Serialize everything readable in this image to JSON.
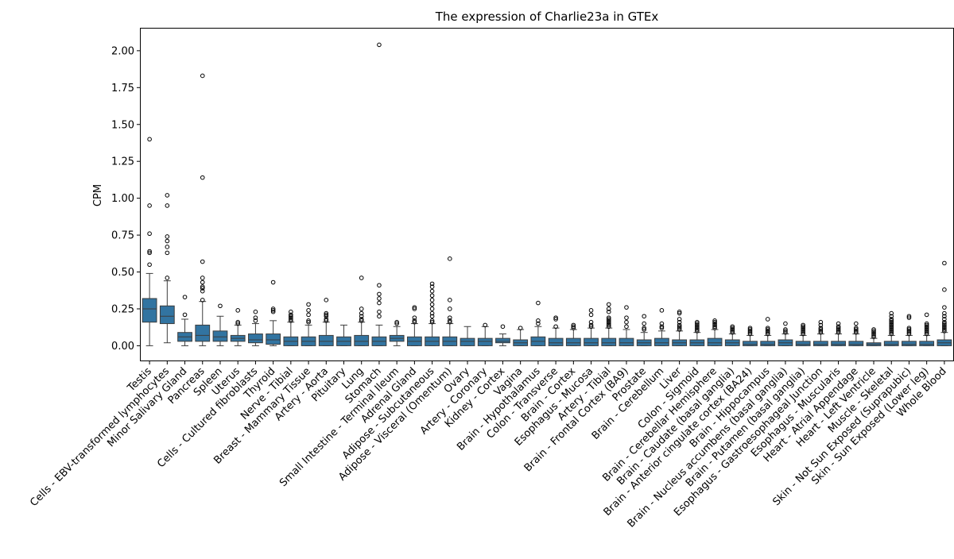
{
  "chart_data": {
    "type": "box",
    "title": "The expression of Charlie23a in GTEx",
    "xlabel": "",
    "ylabel": "CPM",
    "ylim": [
      -0.1,
      2.15
    ],
    "yticks": [
      0.0,
      0.25,
      0.5,
      0.75,
      1.0,
      1.25,
      1.5,
      1.75,
      2.0
    ],
    "ytick_labels": [
      "0.00",
      "0.25",
      "0.50",
      "0.75",
      "1.00",
      "1.25",
      "1.50",
      "1.75",
      "2.00"
    ],
    "grid": false,
    "legend": "none",
    "box_color": "#3274a1",
    "edge_color": "#3d3d3d",
    "categories": [
      "Testis",
      "Cells - EBV-transformed lymphocytes",
      "Minor Salivary Gland",
      "Pancreas",
      "Spleen",
      "Uterus",
      "Cells - Cultured fibroblasts",
      "Thyroid",
      "Nerve - Tibial",
      "Breast - Mammary Tissue",
      "Artery - Aorta",
      "Pituitary",
      "Lung",
      "Stomach",
      "Small Intestine - Terminal Ileum",
      "Adrenal Gland",
      "Adipose - Subcutaneous",
      "Adipose - Visceral (Omentum)",
      "Ovary",
      "Artery - Coronary",
      "Kidney - Cortex",
      "Vagina",
      "Brain - Hypothalamus",
      "Colon - Transverse",
      "Brain - Cortex",
      "Esophagus - Mucosa",
      "Artery - Tibial",
      "Brain - Frontal Cortex (BA9)",
      "Prostate",
      "Brain - Cerebellum",
      "Liver",
      "Colon - Sigmoid",
      "Brain - Cerebellar Hemisphere",
      "Brain - Caudate (basal ganglia)",
      "Brain - Anterior cingulate cortex (BA24)",
      "Brain - Hippocampus",
      "Brain - Nucleus accumbens (basal ganglia)",
      "Brain - Putamen (basal ganglia)",
      "Esophagus - Gastroesophageal Junction",
      "Esophagus - Muscularis",
      "Heart - Atrial Appendage",
      "Heart - Left Ventricle",
      "Muscle - Skeletal",
      "Skin - Not Sun Exposed (Suprapubic)",
      "Skin - Sun Exposed (Lower leg)",
      "Whole Blood"
    ],
    "boxes": [
      {
        "q1": 0.16,
        "median": 0.25,
        "q3": 0.32,
        "whisker_low": 0.0,
        "whisker_high": 0.49,
        "outliers": [
          0.55,
          0.63,
          0.64,
          0.76,
          0.95,
          1.4
        ]
      },
      {
        "q1": 0.15,
        "median": 0.2,
        "q3": 0.27,
        "whisker_low": 0.02,
        "whisker_high": 0.44,
        "outliers": [
          0.46,
          0.63,
          0.67,
          0.71,
          0.74,
          0.95,
          1.02
        ]
      },
      {
        "q1": 0.03,
        "median": 0.06,
        "q3": 0.09,
        "whisker_low": 0.0,
        "whisker_high": 0.18,
        "outliers": [
          0.21,
          0.33
        ]
      },
      {
        "q1": 0.03,
        "median": 0.07,
        "q3": 0.14,
        "whisker_low": 0.0,
        "whisker_high": 0.3,
        "outliers": [
          0.31,
          0.37,
          0.39,
          0.4,
          0.43,
          0.46,
          0.57,
          1.14,
          1.83
        ]
      },
      {
        "q1": 0.03,
        "median": 0.06,
        "q3": 0.1,
        "whisker_low": 0.0,
        "whisker_high": 0.2,
        "outliers": [
          0.27
        ]
      },
      {
        "q1": 0.03,
        "median": 0.05,
        "q3": 0.07,
        "whisker_low": 0.0,
        "whisker_high": 0.14,
        "outliers": [
          0.15,
          0.16,
          0.24
        ]
      },
      {
        "q1": 0.02,
        "median": 0.04,
        "q3": 0.08,
        "whisker_low": 0.0,
        "whisker_high": 0.15,
        "outliers": [
          0.17,
          0.19,
          0.23
        ]
      },
      {
        "q1": 0.01,
        "median": 0.04,
        "q3": 0.08,
        "whisker_low": 0.0,
        "whisker_high": 0.17,
        "outliers": [
          0.23,
          0.24,
          0.25,
          0.43
        ]
      },
      {
        "q1": 0.0,
        "median": 0.03,
        "q3": 0.06,
        "whisker_low": 0.0,
        "whisker_high": 0.16,
        "outliers": [
          0.17,
          0.18,
          0.19,
          0.2,
          0.21,
          0.23
        ]
      },
      {
        "q1": 0.0,
        "median": 0.03,
        "q3": 0.06,
        "whisker_low": 0.0,
        "whisker_high": 0.14,
        "outliers": [
          0.16,
          0.17,
          0.21,
          0.24,
          0.28
        ]
      },
      {
        "q1": 0.0,
        "median": 0.03,
        "q3": 0.07,
        "whisker_low": 0.0,
        "whisker_high": 0.16,
        "outliers": [
          0.17,
          0.18,
          0.2,
          0.21,
          0.22,
          0.31
        ]
      },
      {
        "q1": 0.0,
        "median": 0.03,
        "q3": 0.06,
        "whisker_low": 0.0,
        "whisker_high": 0.14,
        "outliers": []
      },
      {
        "q1": 0.0,
        "median": 0.03,
        "q3": 0.07,
        "whisker_low": 0.0,
        "whisker_high": 0.16,
        "outliers": [
          0.17,
          0.18,
          0.2,
          0.22,
          0.25,
          0.46
        ]
      },
      {
        "q1": 0.0,
        "median": 0.03,
        "q3": 0.06,
        "whisker_low": 0.0,
        "whisker_high": 0.14,
        "outliers": [
          0.2,
          0.23,
          0.29,
          0.32,
          0.35,
          0.41,
          2.04
        ]
      },
      {
        "q1": 0.03,
        "median": 0.05,
        "q3": 0.07,
        "whisker_low": 0.0,
        "whisker_high": 0.13,
        "outliers": [
          0.15,
          0.16
        ]
      },
      {
        "q1": 0.0,
        "median": 0.03,
        "q3": 0.06,
        "whisker_low": 0.0,
        "whisker_high": 0.15,
        "outliers": [
          0.16,
          0.17,
          0.19,
          0.25,
          0.26
        ]
      },
      {
        "q1": 0.0,
        "median": 0.03,
        "q3": 0.06,
        "whisker_low": 0.0,
        "whisker_high": 0.15,
        "outliers": [
          0.16,
          0.17,
          0.2,
          0.22,
          0.25,
          0.28,
          0.31,
          0.34,
          0.37,
          0.4,
          0.42
        ]
      },
      {
        "q1": 0.0,
        "median": 0.03,
        "q3": 0.06,
        "whisker_low": 0.0,
        "whisker_high": 0.15,
        "outliers": [
          0.16,
          0.17,
          0.19,
          0.25,
          0.31,
          0.59
        ]
      },
      {
        "q1": 0.0,
        "median": 0.03,
        "q3": 0.05,
        "whisker_low": 0.0,
        "whisker_high": 0.13,
        "outliers": []
      },
      {
        "q1": 0.0,
        "median": 0.03,
        "q3": 0.05,
        "whisker_low": 0.0,
        "whisker_high": 0.13,
        "outliers": [
          0.14
        ]
      },
      {
        "q1": 0.02,
        "median": 0.03,
        "q3": 0.05,
        "whisker_low": 0.0,
        "whisker_high": 0.08,
        "outliers": [
          0.13
        ]
      },
      {
        "q1": 0.0,
        "median": 0.02,
        "q3": 0.04,
        "whisker_low": 0.0,
        "whisker_high": 0.11,
        "outliers": [
          0.12
        ]
      },
      {
        "q1": 0.0,
        "median": 0.03,
        "q3": 0.06,
        "whisker_low": 0.0,
        "whisker_high": 0.13,
        "outliers": [
          0.15,
          0.17,
          0.29
        ]
      },
      {
        "q1": 0.0,
        "median": 0.02,
        "q3": 0.05,
        "whisker_low": 0.0,
        "whisker_high": 0.12,
        "outliers": [
          0.13,
          0.18,
          0.19
        ]
      },
      {
        "q1": 0.0,
        "median": 0.02,
        "q3": 0.05,
        "whisker_low": 0.0,
        "whisker_high": 0.11,
        "outliers": [
          0.12,
          0.13,
          0.14
        ]
      },
      {
        "q1": 0.0,
        "median": 0.02,
        "q3": 0.05,
        "whisker_low": 0.0,
        "whisker_high": 0.12,
        "outliers": [
          0.13,
          0.14,
          0.16,
          0.21,
          0.24
        ]
      },
      {
        "q1": 0.0,
        "median": 0.02,
        "q3": 0.05,
        "whisker_low": 0.0,
        "whisker_high": 0.12,
        "outliers": [
          0.13,
          0.14,
          0.15,
          0.16,
          0.17,
          0.18,
          0.19,
          0.23,
          0.25,
          0.28
        ]
      },
      {
        "q1": 0.0,
        "median": 0.02,
        "q3": 0.05,
        "whisker_low": 0.0,
        "whisker_high": 0.11,
        "outliers": [
          0.13,
          0.16,
          0.19,
          0.26
        ]
      },
      {
        "q1": 0.0,
        "median": 0.02,
        "q3": 0.04,
        "whisker_low": 0.0,
        "whisker_high": 0.09,
        "outliers": [
          0.11,
          0.12,
          0.15,
          0.2
        ]
      },
      {
        "q1": 0.0,
        "median": 0.02,
        "q3": 0.05,
        "whisker_low": 0.0,
        "whisker_high": 0.1,
        "outliers": [
          0.12,
          0.13,
          0.15,
          0.24
        ]
      },
      {
        "q1": 0.0,
        "median": 0.02,
        "q3": 0.04,
        "whisker_low": 0.0,
        "whisker_high": 0.1,
        "outliers": [
          0.11,
          0.12,
          0.13,
          0.14,
          0.16,
          0.18,
          0.22,
          0.23
        ]
      },
      {
        "q1": 0.0,
        "median": 0.02,
        "q3": 0.04,
        "whisker_low": 0.0,
        "whisker_high": 0.09,
        "outliers": [
          0.1,
          0.11,
          0.12,
          0.13,
          0.14,
          0.15,
          0.16
        ]
      },
      {
        "q1": 0.0,
        "median": 0.02,
        "q3": 0.05,
        "whisker_low": 0.0,
        "whisker_high": 0.11,
        "outliers": [
          0.12,
          0.13,
          0.14,
          0.15,
          0.16,
          0.17
        ]
      },
      {
        "q1": 0.0,
        "median": 0.02,
        "q3": 0.04,
        "whisker_low": 0.0,
        "whisker_high": 0.08,
        "outliers": [
          0.09,
          0.1,
          0.11,
          0.12,
          0.13
        ]
      },
      {
        "q1": 0.0,
        "median": 0.01,
        "q3": 0.03,
        "whisker_low": 0.0,
        "whisker_high": 0.07,
        "outliers": [
          0.08,
          0.09,
          0.1,
          0.11,
          0.12
        ]
      },
      {
        "q1": 0.0,
        "median": 0.01,
        "q3": 0.03,
        "whisker_low": 0.0,
        "whisker_high": 0.07,
        "outliers": [
          0.08,
          0.09,
          0.1,
          0.11,
          0.12,
          0.18
        ]
      },
      {
        "q1": 0.0,
        "median": 0.02,
        "q3": 0.04,
        "whisker_low": 0.0,
        "whisker_high": 0.08,
        "outliers": [
          0.09,
          0.1,
          0.11,
          0.15
        ]
      },
      {
        "q1": 0.0,
        "median": 0.01,
        "q3": 0.03,
        "whisker_low": 0.0,
        "whisker_high": 0.07,
        "outliers": [
          0.08,
          0.09,
          0.1,
          0.11,
          0.12,
          0.13,
          0.14
        ]
      },
      {
        "q1": 0.0,
        "median": 0.01,
        "q3": 0.03,
        "whisker_low": 0.0,
        "whisker_high": 0.08,
        "outliers": [
          0.09,
          0.1,
          0.11,
          0.12,
          0.14,
          0.16
        ]
      },
      {
        "q1": 0.0,
        "median": 0.01,
        "q3": 0.03,
        "whisker_low": 0.0,
        "whisker_high": 0.08,
        "outliers": [
          0.09,
          0.1,
          0.11,
          0.12,
          0.13,
          0.15
        ]
      },
      {
        "q1": 0.0,
        "median": 0.01,
        "q3": 0.03,
        "whisker_low": 0.0,
        "whisker_high": 0.08,
        "outliers": [
          0.09,
          0.1,
          0.11,
          0.12,
          0.15
        ]
      },
      {
        "q1": 0.0,
        "median": 0.01,
        "q3": 0.02,
        "whisker_low": 0.0,
        "whisker_high": 0.05,
        "outliers": [
          0.06,
          0.07,
          0.08,
          0.09,
          0.1,
          0.11
        ]
      },
      {
        "q1": 0.0,
        "median": 0.01,
        "q3": 0.03,
        "whisker_low": 0.0,
        "whisker_high": 0.07,
        "outliers": [
          0.08,
          0.09,
          0.1,
          0.11,
          0.12,
          0.13,
          0.14,
          0.15,
          0.16,
          0.17,
          0.18,
          0.2,
          0.22
        ]
      },
      {
        "q1": 0.0,
        "median": 0.01,
        "q3": 0.03,
        "whisker_low": 0.0,
        "whisker_high": 0.07,
        "outliers": [
          0.08,
          0.09,
          0.1,
          0.11,
          0.12,
          0.19,
          0.2
        ]
      },
      {
        "q1": 0.0,
        "median": 0.01,
        "q3": 0.03,
        "whisker_low": 0.0,
        "whisker_high": 0.07,
        "outliers": [
          0.08,
          0.09,
          0.1,
          0.11,
          0.12,
          0.13,
          0.14,
          0.15,
          0.21
        ]
      },
      {
        "q1": 0.0,
        "median": 0.02,
        "q3": 0.04,
        "whisker_low": 0.0,
        "whisker_high": 0.09,
        "outliers": [
          0.1,
          0.11,
          0.12,
          0.13,
          0.14,
          0.15,
          0.16,
          0.18,
          0.2,
          0.22,
          0.26,
          0.38,
          0.56
        ]
      }
    ]
  }
}
